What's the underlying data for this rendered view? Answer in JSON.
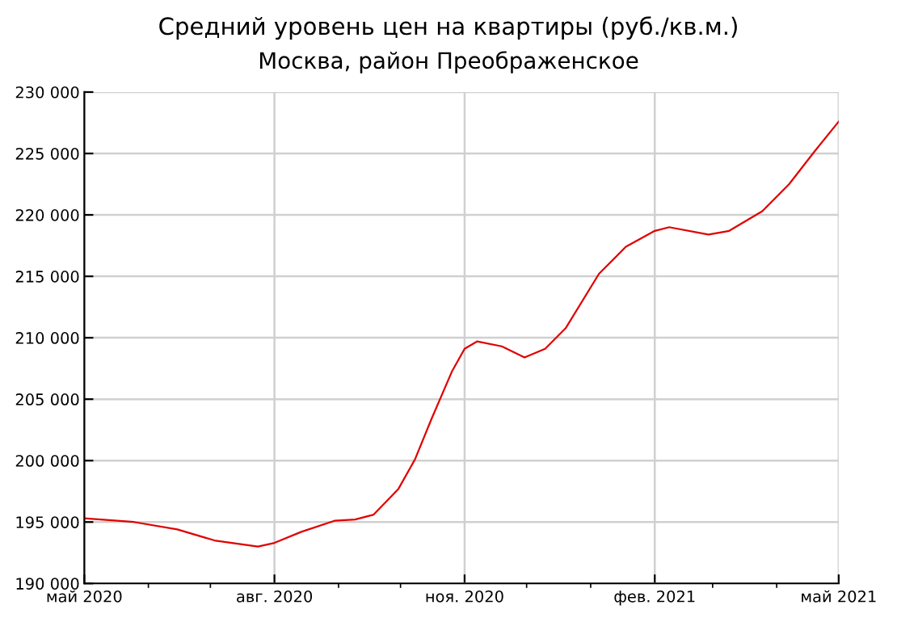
{
  "chart_data": {
    "type": "line",
    "title": "Средний уровень цен на квартиры (руб./кв.м.)",
    "subtitle": "Москва, район Преображенское",
    "x": [
      "2020-05-01",
      "2020-05-25",
      "2020-06-15",
      "2020-07-03",
      "2020-07-24",
      "2020-08-01",
      "2020-08-14",
      "2020-08-30",
      "2020-09-09",
      "2020-09-18",
      "2020-09-30",
      "2020-10-08",
      "2020-10-16",
      "2020-10-26",
      "2020-11-01",
      "2020-11-07",
      "2020-11-19",
      "2020-11-30",
      "2020-12-10",
      "2020-12-20",
      "2021-01-05",
      "2021-01-18",
      "2021-02-01",
      "2021-02-08",
      "2021-02-27",
      "2021-03-09",
      "2021-03-25",
      "2021-04-07",
      "2021-04-19",
      "2021-05-01"
    ],
    "series": [
      {
        "color": "#e00000",
        "values": [
          195300,
          195000,
          194400,
          193500,
          193000,
          193300,
          194200,
          195100,
          195200,
          195600,
          197700,
          200100,
          203400,
          207300,
          209100,
          209700,
          209300,
          208400,
          209100,
          210800,
          215200,
          217400,
          218700,
          219000,
          218400,
          218700,
          220300,
          222500,
          225100,
          227600
        ]
      }
    ],
    "xlim": [
      "2020-05-01",
      "2021-05-01"
    ],
    "xticks": [
      {
        "value": "2020-05-01",
        "label": "май 2020"
      },
      {
        "value": "2020-06-01",
        "label": null
      },
      {
        "value": "2020-07-01",
        "label": null
      },
      {
        "value": "2020-08-01",
        "label": "авг. 2020"
      },
      {
        "value": "2020-09-01",
        "label": null
      },
      {
        "value": "2020-10-01",
        "label": null
      },
      {
        "value": "2020-11-01",
        "label": "ноя. 2020"
      },
      {
        "value": "2020-12-01",
        "label": null
      },
      {
        "value": "2021-01-01",
        "label": null
      },
      {
        "value": "2021-02-01",
        "label": "фев. 2021"
      },
      {
        "value": "2021-03-01",
        "label": null
      },
      {
        "value": "2021-04-01",
        "label": null
      },
      {
        "value": "2021-05-01",
        "label": "май 2021"
      }
    ],
    "ylim": [
      190000,
      230000
    ],
    "yticks": [
      {
        "value": 190000,
        "label": "190 000"
      },
      {
        "value": 195000,
        "label": "195 000"
      },
      {
        "value": 200000,
        "label": "200 000"
      },
      {
        "value": 205000,
        "label": "205 000"
      },
      {
        "value": 210000,
        "label": "210 000"
      },
      {
        "value": 215000,
        "label": "215 000"
      },
      {
        "value": 220000,
        "label": "220 000"
      },
      {
        "value": 225000,
        "label": "225 000"
      },
      {
        "value": 230000,
        "label": "230 000"
      }
    ],
    "grid": true,
    "marker": "none",
    "line_style": "solid"
  }
}
